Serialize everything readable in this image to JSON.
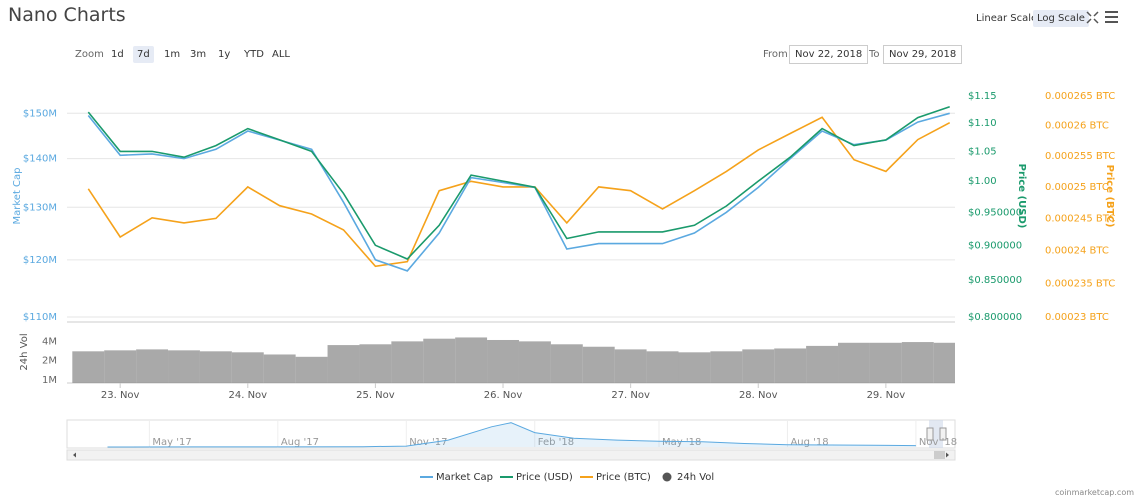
{
  "controls": {
    "scale_buttons": [
      "Linear Scale",
      "Log Scale"
    ],
    "zoom_label": "Zoom",
    "zoom_buttons": [
      "1d",
      "7d",
      "1m",
      "3m",
      "1y",
      "YTD",
      "ALL"
    ],
    "from_label": "From",
    "from_date": "Nov 22, 2018",
    "to_label": "To",
    "to_date": "Nov 29, 2018",
    "credit": "coinmarketcap.com"
  },
  "chart_data": [
    {
      "type": "line",
      "title": "Nano Charts",
      "log_scale": true,
      "grid": true,
      "legend": "bottom",
      "y_label": "Market Cap",
      "y2_label": "Price (USD)",
      "y3_label": "Price (BTC)",
      "x": [
        "2018-11-22T18:00",
        "2018-11-23T00:00",
        "2018-11-23T06:00",
        "2018-11-23T12:00",
        "2018-11-23T18:00",
        "2018-11-24T00:00",
        "2018-11-24T06:00",
        "2018-11-24T12:00",
        "2018-11-24T18:00",
        "2018-11-25T00:00",
        "2018-11-25T06:00",
        "2018-11-25T12:00",
        "2018-11-25T18:00",
        "2018-11-26T00:00",
        "2018-11-26T06:00",
        "2018-11-26T12:00",
        "2018-11-26T18:00",
        "2018-11-27T00:00",
        "2018-11-27T06:00",
        "2018-11-27T12:00",
        "2018-11-27T18:00",
        "2018-11-28T00:00",
        "2018-11-28T06:00",
        "2018-11-28T12:00",
        "2018-11-28T18:00",
        "2018-11-29T00:00",
        "2018-11-29T06:00",
        "2018-11-29T12:00"
      ],
      "xlim": [
        "2018-11-22T14:00",
        "2018-11-29T13:00"
      ],
      "series": [
        {
          "name": "Market Cap",
          "color": "#5ba9e0",
          "axis": "y",
          "values": [
            149500000,
            140700000,
            141000000,
            140000000,
            142000000,
            146000000,
            144000000,
            142000000,
            131000000,
            120000000,
            118000000,
            125000000,
            136000000,
            135000000,
            134000000,
            122000000,
            123000000,
            123000000,
            123000000,
            125000000,
            129000000,
            134000000,
            140000000,
            146000000,
            143000000,
            144000000,
            148000000,
            150000000
          ]
        },
        {
          "name": "Price (USD)",
          "color": "#1a9a6c",
          "axis": "y2",
          "values": [
            1.12,
            1.05,
            1.05,
            1.04,
            1.06,
            1.09,
            1.07,
            1.05,
            0.98,
            0.9,
            0.88,
            0.93,
            1.01,
            1.0,
            0.99,
            0.91,
            0.92,
            0.92,
            0.92,
            0.93,
            0.96,
            1.0,
            1.04,
            1.09,
            1.06,
            1.07,
            1.11,
            1.13
          ]
        },
        {
          "name": "Price (BTC)",
          "color": "#f5a21b",
          "axis": "y3",
          "values": [
            0.0002497,
            0.0002421,
            0.0002451,
            0.0002443,
            0.000245,
            0.00025,
            0.000247,
            0.0002457,
            0.0002432,
            0.0002376,
            0.0002383,
            0.0002494,
            0.0002509,
            0.00025,
            0.00025,
            0.0002443,
            0.00025,
            0.0002494,
            0.0002465,
            0.0002494,
            0.0002525,
            0.000256,
            0.0002587,
            0.0002614,
            0.0002544,
            0.0002525,
            0.0002577,
            0.0002605
          ]
        }
      ],
      "ylim": [
        110000000,
        154000000
      ],
      "yticks": [
        {
          "value": 110000000,
          "label": "$110M"
        },
        {
          "value": 120000000,
          "label": "$120M"
        },
        {
          "value": 130000000,
          "label": "$130M"
        },
        {
          "value": 140000000,
          "label": "$140M"
        },
        {
          "value": 150000000,
          "label": "$150M"
        }
      ],
      "y2lim": [
        0.8,
        1.15
      ],
      "y2ticks": [
        {
          "value": 0.8,
          "label": "$0.800000"
        },
        {
          "value": 0.85,
          "label": "$0.850000"
        },
        {
          "value": 0.9,
          "label": "$0.900000"
        },
        {
          "value": 0.95,
          "label": "$0.950000"
        },
        {
          "value": 1.0,
          "label": "$1.00"
        },
        {
          "value": 1.05,
          "label": "$1.05"
        },
        {
          "value": 1.1,
          "label": "$1.10"
        },
        {
          "value": 1.15,
          "label": "$1.15"
        }
      ],
      "y3lim": [
        0.00023,
        0.000265
      ],
      "y3ticks": [
        {
          "value": 0.00023,
          "label": "0.00023 BTC"
        },
        {
          "value": 0.000235,
          "label": "0.000235 BTC"
        },
        {
          "value": 0.00024,
          "label": "0.00024 BTC"
        },
        {
          "value": 0.000245,
          "label": "0.000245 BTC"
        },
        {
          "value": 0.00025,
          "label": "0.00025 BTC"
        },
        {
          "value": 0.000255,
          "label": "0.000255 BTC"
        },
        {
          "value": 0.00026,
          "label": "0.00026 BTC"
        },
        {
          "value": 0.000265,
          "label": "0.000265 BTC"
        }
      ]
    },
    {
      "type": "bar",
      "log_scale": true,
      "y_label": "24h Vol",
      "x": [
        "2018-11-22T18:00",
        "2018-11-23T00:00",
        "2018-11-23T06:00",
        "2018-11-23T12:00",
        "2018-11-23T18:00",
        "2018-11-24T00:00",
        "2018-11-24T06:00",
        "2018-11-24T12:00",
        "2018-11-24T18:00",
        "2018-11-25T00:00",
        "2018-11-25T06:00",
        "2018-11-25T12:00",
        "2018-11-25T18:00",
        "2018-11-26T00:00",
        "2018-11-26T06:00",
        "2018-11-26T12:00",
        "2018-11-26T18:00",
        "2018-11-27T00:00",
        "2018-11-27T06:00",
        "2018-11-27T12:00",
        "2018-11-27T18:00",
        "2018-11-28T00:00",
        "2018-11-28T06:00",
        "2018-11-28T12:00",
        "2018-11-28T18:00",
        "2018-11-29T00:00",
        "2018-11-29T06:00",
        "2018-11-29T12:00"
      ],
      "xlim": [
        "2018-11-22T14:00",
        "2018-11-29T13:00"
      ],
      "series": [
        {
          "name": "24h Vol",
          "color": "#8c8c8c",
          "values": [
            2800000,
            2900000,
            3000000,
            2900000,
            2800000,
            2700000,
            2500000,
            2300000,
            3500000,
            3600000,
            4000000,
            4400000,
            4600000,
            4200000,
            4000000,
            3600000,
            3300000,
            3000000,
            2800000,
            2700000,
            2800000,
            3000000,
            3100000,
            3400000,
            3800000,
            3800000,
            3900000,
            3800000
          ]
        }
      ],
      "ylim": [
        900000,
        8000000
      ],
      "yticks": [
        {
          "value": 1000000,
          "label": "1M"
        },
        {
          "value": 2000000,
          "label": "2M"
        },
        {
          "value": 4000000,
          "label": "4M"
        }
      ],
      "xticks": [
        {
          "value": "2018-11-23T00:00",
          "label": "23. Nov"
        },
        {
          "value": "2018-11-24T00:00",
          "label": "24. Nov"
        },
        {
          "value": "2018-11-25T00:00",
          "label": "25. Nov"
        },
        {
          "value": "2018-11-26T00:00",
          "label": "26. Nov"
        },
        {
          "value": "2018-11-27T00:00",
          "label": "27. Nov"
        },
        {
          "value": "2018-11-28T00:00",
          "label": "28. Nov"
        },
        {
          "value": "2018-11-29T00:00",
          "label": "29. Nov"
        }
      ]
    },
    {
      "type": "area",
      "color": "#5ba9e0",
      "x": [
        "2017-04-01",
        "2017-06-01",
        "2017-08-01",
        "2017-10-01",
        "2017-11-01",
        "2017-12-01",
        "2018-01-01",
        "2018-01-15",
        "2018-02-01",
        "2018-03-01",
        "2018-04-01",
        "2018-05-01",
        "2018-06-01",
        "2018-07-01",
        "2018-08-01",
        "2018-09-01",
        "2018-10-01",
        "2018-11-01"
      ],
      "values": [
        5000000,
        20000000,
        20000000,
        50000000,
        150000000,
        1200000000,
        3500000000,
        4200000000,
        2500000000,
        1500000000,
        1200000000,
        1000000000,
        900000000,
        600000000,
        400000000,
        350000000,
        300000000,
        250000000
      ],
      "xlim": [
        "2017-03-03",
        "2018-11-29"
      ],
      "ylim": [
        0,
        4500000000
      ],
      "xticks": [
        {
          "value": "2017-05-01",
          "label": "May '17"
        },
        {
          "value": "2017-08-01",
          "label": "Aug '17"
        },
        {
          "value": "2017-11-01",
          "label": "Nov '17"
        },
        {
          "value": "2018-02-01",
          "label": "Feb '18"
        },
        {
          "value": "2018-05-01",
          "label": "May '18"
        },
        {
          "value": "2018-08-01",
          "label": "Aug '18"
        },
        {
          "value": "2018-11-01",
          "label": "Nov '18"
        }
      ]
    }
  ]
}
